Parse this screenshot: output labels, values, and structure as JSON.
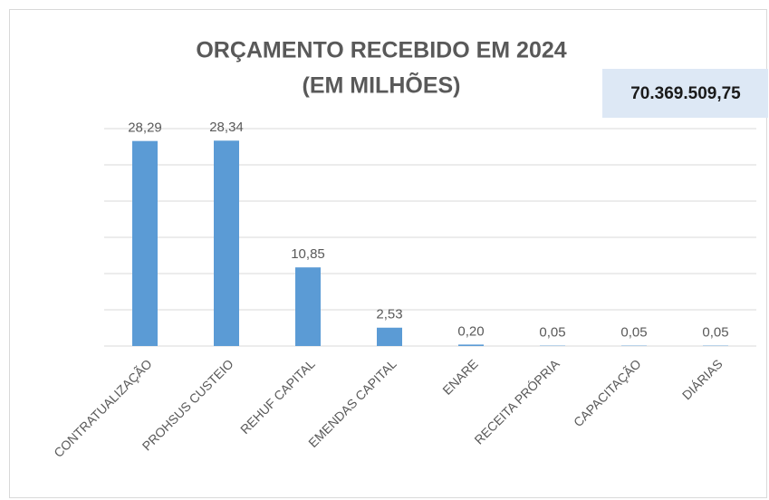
{
  "chart_data": {
    "type": "bar",
    "title": "ORÇAMENTO RECEBIDO EM 2024",
    "subtitle": "(EM MILHÕES)",
    "annotation": "70.369.509,75",
    "categories": [
      "CONTRATUALIZAÇÃO",
      "PROHSUS CUSTEIO",
      "REHUF CAPITAL",
      "EMENDAS CAPITAL",
      "ENARE",
      "RECEITA PRÓPRIA",
      "CAPACITAÇÃO",
      "DIÁRIAS"
    ],
    "values": [
      28.29,
      28.34,
      10.85,
      2.53,
      0.2,
      0.05,
      0.05,
      0.05
    ],
    "value_labels": [
      "28,29",
      "28,34",
      "10,85",
      "2,53",
      "0,20",
      "0,05",
      "0,05",
      "0,05"
    ],
    "color": "#5b9bd5",
    "ylim": [
      0,
      30
    ],
    "yticks": [
      0,
      5,
      10,
      15,
      20,
      25,
      30
    ],
    "grid": true
  }
}
